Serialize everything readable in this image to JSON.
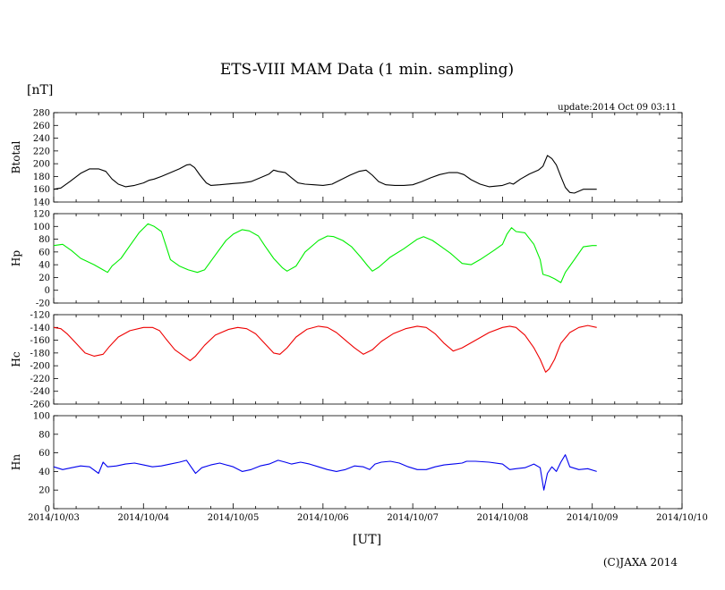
{
  "chart_data": {
    "type": "line",
    "title": "ETS-VIII MAM Data (1 min. sampling)",
    "y_unit": "[nT]",
    "x_unit": "[UT]",
    "update": "update:2014 Oct 09 03:11",
    "copyright": "(C)JAXA 2014",
    "x_ticks": [
      "2014/10/03",
      "2014/10/04",
      "2014/10/05",
      "2014/10/06",
      "2014/10/07",
      "2014/10/08",
      "2014/10/09",
      "2014/10/10"
    ],
    "x_range_days": [
      0,
      7
    ],
    "panels": [
      {
        "ylabel": "Btotal",
        "color": "#000000",
        "ylim": [
          140,
          280
        ],
        "yticks": [
          140,
          160,
          180,
          200,
          220,
          240,
          260,
          280
        ],
        "points": [
          [
            0.0,
            160
          ],
          [
            0.08,
            162
          ],
          [
            0.18,
            172
          ],
          [
            0.3,
            185
          ],
          [
            0.4,
            192
          ],
          [
            0.5,
            192
          ],
          [
            0.58,
            188
          ],
          [
            0.65,
            176
          ],
          [
            0.72,
            168
          ],
          [
            0.8,
            164
          ],
          [
            0.9,
            166
          ],
          [
            1.0,
            170
          ],
          [
            1.06,
            174
          ],
          [
            1.12,
            176
          ],
          [
            1.2,
            180
          ],
          [
            1.3,
            186
          ],
          [
            1.4,
            192
          ],
          [
            1.48,
            198
          ],
          [
            1.52,
            199
          ],
          [
            1.57,
            194
          ],
          [
            1.63,
            182
          ],
          [
            1.7,
            170
          ],
          [
            1.75,
            166
          ],
          [
            1.85,
            167
          ],
          [
            2.0,
            169
          ],
          [
            2.1,
            170
          ],
          [
            2.2,
            172
          ],
          [
            2.3,
            178
          ],
          [
            2.4,
            184
          ],
          [
            2.45,
            190
          ],
          [
            2.5,
            188
          ],
          [
            2.58,
            186
          ],
          [
            2.65,
            178
          ],
          [
            2.72,
            170
          ],
          [
            2.8,
            168
          ],
          [
            2.9,
            167
          ],
          [
            3.0,
            166
          ],
          [
            3.1,
            168
          ],
          [
            3.2,
            175
          ],
          [
            3.3,
            182
          ],
          [
            3.4,
            188
          ],
          [
            3.48,
            190
          ],
          [
            3.55,
            182
          ],
          [
            3.62,
            172
          ],
          [
            3.7,
            167
          ],
          [
            3.8,
            166
          ],
          [
            3.9,
            166
          ],
          [
            4.0,
            167
          ],
          [
            4.1,
            172
          ],
          [
            4.2,
            178
          ],
          [
            4.3,
            183
          ],
          [
            4.4,
            186
          ],
          [
            4.5,
            186
          ],
          [
            4.57,
            183
          ],
          [
            4.65,
            175
          ],
          [
            4.75,
            168
          ],
          [
            4.85,
            164
          ],
          [
            5.0,
            166
          ],
          [
            5.08,
            170
          ],
          [
            5.12,
            168
          ],
          [
            5.2,
            176
          ],
          [
            5.3,
            184
          ],
          [
            5.4,
            190
          ],
          [
            5.45,
            196
          ],
          [
            5.5,
            213
          ],
          [
            5.55,
            208
          ],
          [
            5.6,
            198
          ],
          [
            5.65,
            180
          ],
          [
            5.7,
            163
          ],
          [
            5.75,
            155
          ],
          [
            5.8,
            154
          ],
          [
            5.85,
            157
          ],
          [
            5.9,
            160
          ],
          [
            6.0,
            160
          ],
          [
            6.05,
            160
          ]
        ]
      },
      {
        "ylabel": "Hp",
        "color": "#00ee00",
        "ylim": [
          -20,
          120
        ],
        "yticks": [
          -20,
          0,
          20,
          40,
          60,
          80,
          100,
          120
        ],
        "points": [
          [
            0.0,
            70
          ],
          [
            0.1,
            72
          ],
          [
            0.2,
            62
          ],
          [
            0.3,
            50
          ],
          [
            0.45,
            40
          ],
          [
            0.55,
            32
          ],
          [
            0.6,
            28
          ],
          [
            0.65,
            38
          ],
          [
            0.75,
            50
          ],
          [
            0.85,
            70
          ],
          [
            0.95,
            90
          ],
          [
            1.05,
            104
          ],
          [
            1.12,
            100
          ],
          [
            1.2,
            92
          ],
          [
            1.25,
            70
          ],
          [
            1.3,
            48
          ],
          [
            1.4,
            38
          ],
          [
            1.5,
            32
          ],
          [
            1.6,
            28
          ],
          [
            1.68,
            32
          ],
          [
            1.8,
            55
          ],
          [
            1.92,
            78
          ],
          [
            2.0,
            88
          ],
          [
            2.1,
            95
          ],
          [
            2.18,
            93
          ],
          [
            2.28,
            85
          ],
          [
            2.35,
            70
          ],
          [
            2.45,
            50
          ],
          [
            2.55,
            35
          ],
          [
            2.6,
            30
          ],
          [
            2.7,
            38
          ],
          [
            2.8,
            60
          ],
          [
            2.95,
            78
          ],
          [
            3.05,
            85
          ],
          [
            3.12,
            84
          ],
          [
            3.22,
            78
          ],
          [
            3.32,
            68
          ],
          [
            3.42,
            52
          ],
          [
            3.5,
            38
          ],
          [
            3.55,
            30
          ],
          [
            3.62,
            36
          ],
          [
            3.75,
            52
          ],
          [
            3.9,
            65
          ],
          [
            4.05,
            80
          ],
          [
            4.12,
            84
          ],
          [
            4.22,
            78
          ],
          [
            4.32,
            68
          ],
          [
            4.42,
            58
          ],
          [
            4.55,
            42
          ],
          [
            4.65,
            40
          ],
          [
            4.75,
            48
          ],
          [
            4.9,
            62
          ],
          [
            5.0,
            72
          ],
          [
            5.05,
            88
          ],
          [
            5.1,
            98
          ],
          [
            5.15,
            92
          ],
          [
            5.25,
            90
          ],
          [
            5.35,
            72
          ],
          [
            5.42,
            48
          ],
          [
            5.45,
            25
          ],
          [
            5.52,
            22
          ],
          [
            5.58,
            18
          ],
          [
            5.65,
            12
          ],
          [
            5.7,
            28
          ],
          [
            5.8,
            48
          ],
          [
            5.9,
            68
          ],
          [
            6.0,
            70
          ],
          [
            6.05,
            70
          ]
        ]
      },
      {
        "ylabel": "Hc",
        "color": "#ee0000",
        "ylim": [
          -260,
          -120
        ],
        "yticks": [
          -260,
          -240,
          -220,
          -200,
          -180,
          -160,
          -140,
          -120
        ],
        "points": [
          [
            0.0,
            -140
          ],
          [
            0.08,
            -142
          ],
          [
            0.15,
            -150
          ],
          [
            0.25,
            -165
          ],
          [
            0.35,
            -180
          ],
          [
            0.45,
            -185
          ],
          [
            0.55,
            -182
          ],
          [
            0.62,
            -170
          ],
          [
            0.72,
            -155
          ],
          [
            0.85,
            -145
          ],
          [
            1.0,
            -140
          ],
          [
            1.1,
            -140
          ],
          [
            1.18,
            -145
          ],
          [
            1.25,
            -158
          ],
          [
            1.35,
            -175
          ],
          [
            1.45,
            -185
          ],
          [
            1.52,
            -192
          ],
          [
            1.58,
            -185
          ],
          [
            1.68,
            -168
          ],
          [
            1.8,
            -152
          ],
          [
            1.95,
            -143
          ],
          [
            2.05,
            -140
          ],
          [
            2.15,
            -142
          ],
          [
            2.25,
            -150
          ],
          [
            2.35,
            -165
          ],
          [
            2.45,
            -180
          ],
          [
            2.52,
            -182
          ],
          [
            2.6,
            -172
          ],
          [
            2.7,
            -155
          ],
          [
            2.82,
            -143
          ],
          [
            2.95,
            -138
          ],
          [
            3.05,
            -140
          ],
          [
            3.15,
            -148
          ],
          [
            3.25,
            -160
          ],
          [
            3.35,
            -172
          ],
          [
            3.45,
            -182
          ],
          [
            3.55,
            -175
          ],
          [
            3.65,
            -162
          ],
          [
            3.78,
            -150
          ],
          [
            3.92,
            -142
          ],
          [
            4.05,
            -138
          ],
          [
            4.15,
            -140
          ],
          [
            4.25,
            -150
          ],
          [
            4.35,
            -165
          ],
          [
            4.45,
            -177
          ],
          [
            4.55,
            -172
          ],
          [
            4.7,
            -160
          ],
          [
            4.85,
            -148
          ],
          [
            5.0,
            -140
          ],
          [
            5.08,
            -138
          ],
          [
            5.15,
            -140
          ],
          [
            5.25,
            -152
          ],
          [
            5.35,
            -172
          ],
          [
            5.42,
            -190
          ],
          [
            5.48,
            -210
          ],
          [
            5.52,
            -205
          ],
          [
            5.58,
            -190
          ],
          [
            5.65,
            -165
          ],
          [
            5.75,
            -148
          ],
          [
            5.85,
            -140
          ],
          [
            5.95,
            -137
          ],
          [
            6.05,
            -140
          ]
        ]
      },
      {
        "ylabel": "Hn",
        "color": "#0000ee",
        "ylim": [
          0,
          100
        ],
        "yticks": [
          0,
          20,
          40,
          60,
          80,
          100
        ],
        "points": [
          [
            0.0,
            45
          ],
          [
            0.1,
            42
          ],
          [
            0.2,
            44
          ],
          [
            0.3,
            46
          ],
          [
            0.4,
            45
          ],
          [
            0.5,
            38
          ],
          [
            0.55,
            50
          ],
          [
            0.6,
            45
          ],
          [
            0.7,
            46
          ],
          [
            0.8,
            48
          ],
          [
            0.9,
            49
          ],
          [
            1.0,
            47
          ],
          [
            1.1,
            45
          ],
          [
            1.2,
            46
          ],
          [
            1.3,
            48
          ],
          [
            1.4,
            50
          ],
          [
            1.48,
            52
          ],
          [
            1.53,
            45
          ],
          [
            1.58,
            38
          ],
          [
            1.65,
            44
          ],
          [
            1.75,
            47
          ],
          [
            1.85,
            49
          ],
          [
            2.0,
            45
          ],
          [
            2.1,
            40
          ],
          [
            2.2,
            42
          ],
          [
            2.3,
            46
          ],
          [
            2.4,
            48
          ],
          [
            2.5,
            52
          ],
          [
            2.58,
            50
          ],
          [
            2.65,
            48
          ],
          [
            2.75,
            50
          ],
          [
            2.85,
            48
          ],
          [
            2.95,
            45
          ],
          [
            3.05,
            42
          ],
          [
            3.15,
            40
          ],
          [
            3.25,
            42
          ],
          [
            3.35,
            46
          ],
          [
            3.45,
            45
          ],
          [
            3.52,
            42
          ],
          [
            3.58,
            48
          ],
          [
            3.65,
            50
          ],
          [
            3.75,
            51
          ],
          [
            3.85,
            49
          ],
          [
            3.95,
            45
          ],
          [
            4.05,
            42
          ],
          [
            4.15,
            42
          ],
          [
            4.25,
            45
          ],
          [
            4.35,
            47
          ],
          [
            4.45,
            48
          ],
          [
            4.55,
            49
          ],
          [
            4.6,
            51
          ],
          [
            4.7,
            51
          ],
          [
            4.85,
            50
          ],
          [
            5.0,
            48
          ],
          [
            5.08,
            42
          ],
          [
            5.15,
            43
          ],
          [
            5.25,
            44
          ],
          [
            5.35,
            48
          ],
          [
            5.42,
            44
          ],
          [
            5.46,
            20
          ],
          [
            5.5,
            38
          ],
          [
            5.55,
            45
          ],
          [
            5.6,
            40
          ],
          [
            5.65,
            50
          ],
          [
            5.7,
            58
          ],
          [
            5.75,
            45
          ],
          [
            5.85,
            42
          ],
          [
            5.95,
            43
          ],
          [
            6.05,
            40
          ]
        ]
      }
    ]
  }
}
